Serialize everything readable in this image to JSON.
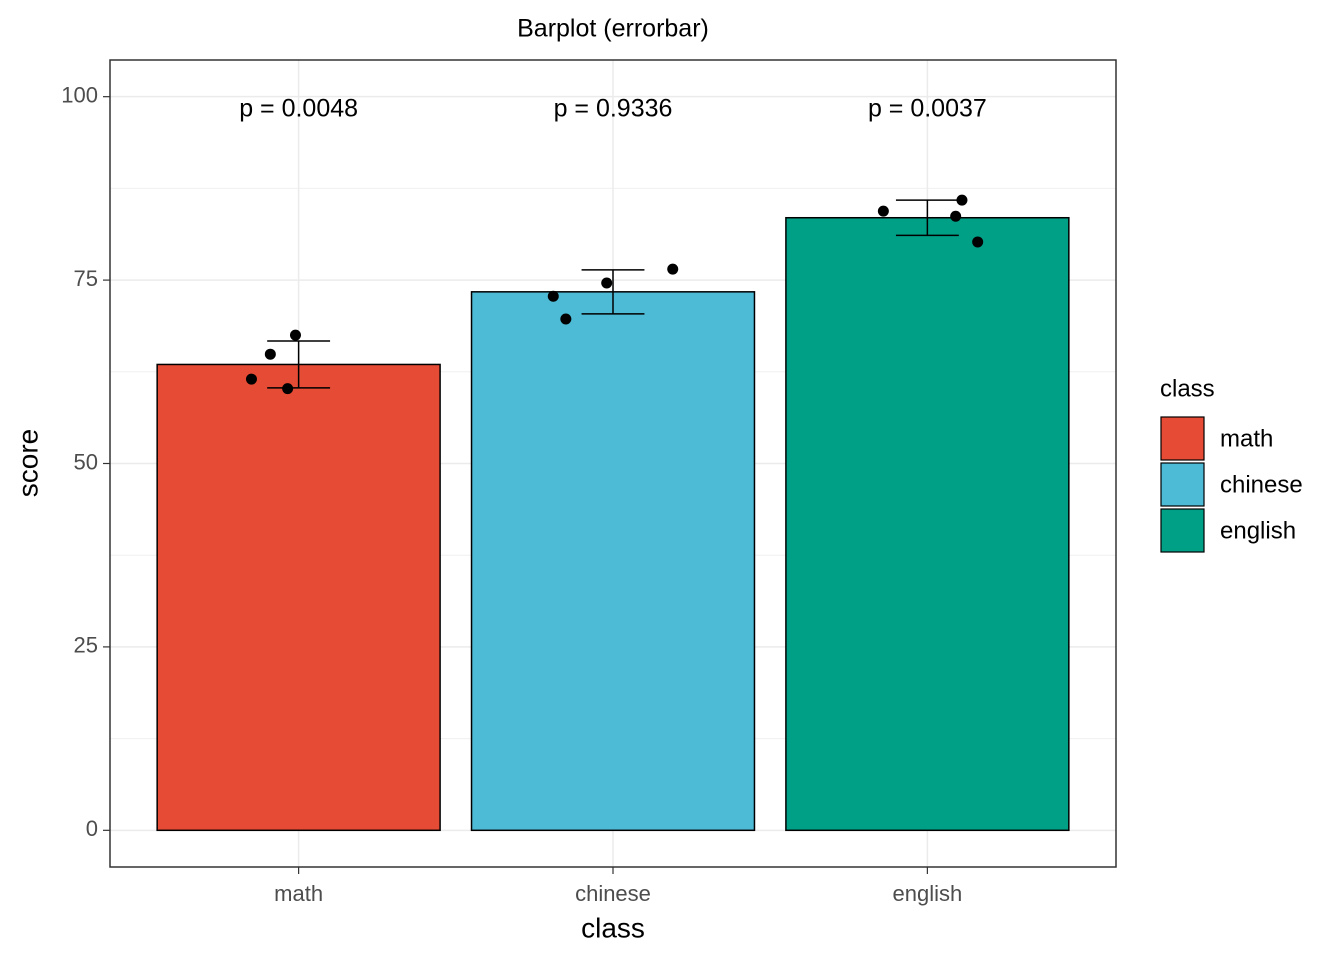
{
  "chart_data": {
    "type": "bar",
    "title": "Barplot (errorbar)",
    "x_label": "class",
    "y_label": "score",
    "categories": [
      "math",
      "chinese",
      "english"
    ],
    "values": [
      63.5,
      73.4,
      83.5
    ],
    "errors": [
      3.2,
      3.0,
      2.4
    ],
    "points": [
      [
        61.5,
        64.9,
        67.5,
        60.2
      ],
      [
        72.8,
        69.7,
        74.6,
        76.5
      ],
      [
        84.4,
        85.9,
        83.7,
        80.2
      ]
    ],
    "colors": [
      "#e64b35",
      "#4dbbd5",
      "#00a087"
    ],
    "annotations": [
      "p = 0.0048",
      "p = 0.9336",
      "p = 0.0037"
    ],
    "legend_title": "class",
    "ylim": [
      -5,
      105
    ],
    "yticks": [
      0,
      25,
      50,
      75,
      100
    ],
    "grid": true
  }
}
